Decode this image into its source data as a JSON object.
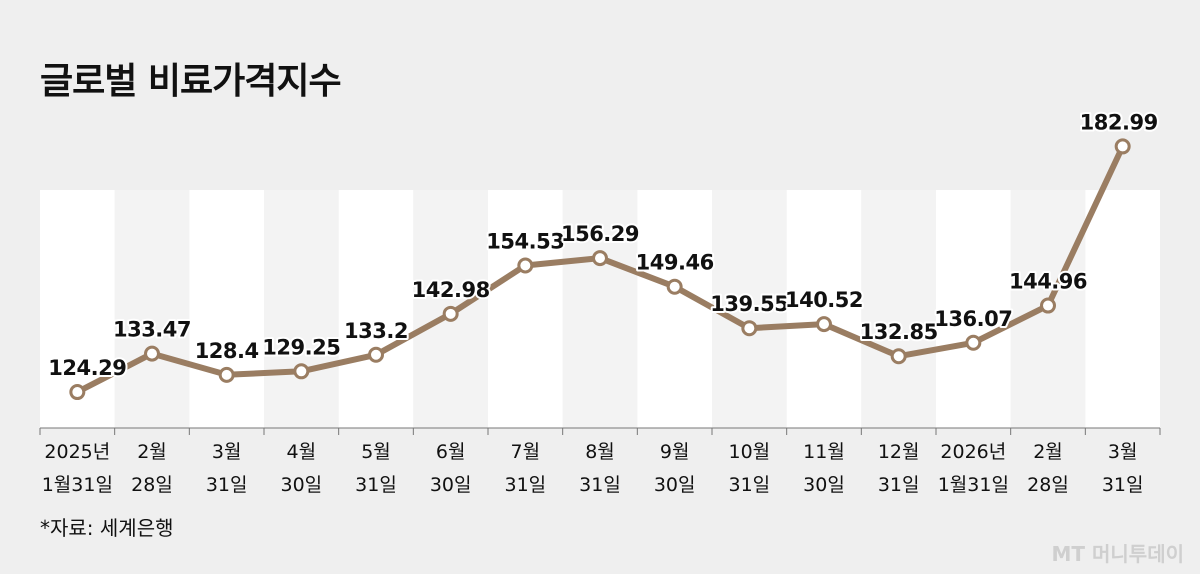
{
  "title": "글로벌 비료가격지수",
  "source": "*자료: 세계은행",
  "watermark": "MT 머니투데이",
  "colors": {
    "line": "#9a7d62",
    "band_light": "#ffffff",
    "band_dark": "#f3f3f3",
    "background": "#efefef"
  },
  "chart_data": {
    "type": "line",
    "title": "글로벌 비료가격지수",
    "xlabel": "",
    "ylabel": "",
    "categories": [
      [
        "2025년",
        "1월31일"
      ],
      [
        "2월",
        "28일"
      ],
      [
        "3월",
        "31일"
      ],
      [
        "4월",
        "30일"
      ],
      [
        "5월",
        "31일"
      ],
      [
        "6월",
        "30일"
      ],
      [
        "7월",
        "31일"
      ],
      [
        "8월",
        "31일"
      ],
      [
        "9월",
        "30일"
      ],
      [
        "10월",
        "31일"
      ],
      [
        "11월",
        "30일"
      ],
      [
        "12월",
        "31일"
      ],
      [
        "2026년",
        "1월31일"
      ],
      [
        "2월",
        "28일"
      ],
      [
        "3월",
        "31일"
      ]
    ],
    "values": [
      124.29,
      133.47,
      128.4,
      129.25,
      133.2,
      142.98,
      154.53,
      156.29,
      149.46,
      139.55,
      140.52,
      132.85,
      136.07,
      144.96,
      182.99
    ],
    "value_labels": [
      "124.29",
      "133.47",
      "128.4",
      "129.25",
      "133.2",
      "142.98",
      "154.53",
      "156.29",
      "149.46",
      "139.55",
      "140.52",
      "132.85",
      "136.07",
      "144.96",
      "182.99"
    ],
    "grid": false,
    "legend": "none"
  }
}
